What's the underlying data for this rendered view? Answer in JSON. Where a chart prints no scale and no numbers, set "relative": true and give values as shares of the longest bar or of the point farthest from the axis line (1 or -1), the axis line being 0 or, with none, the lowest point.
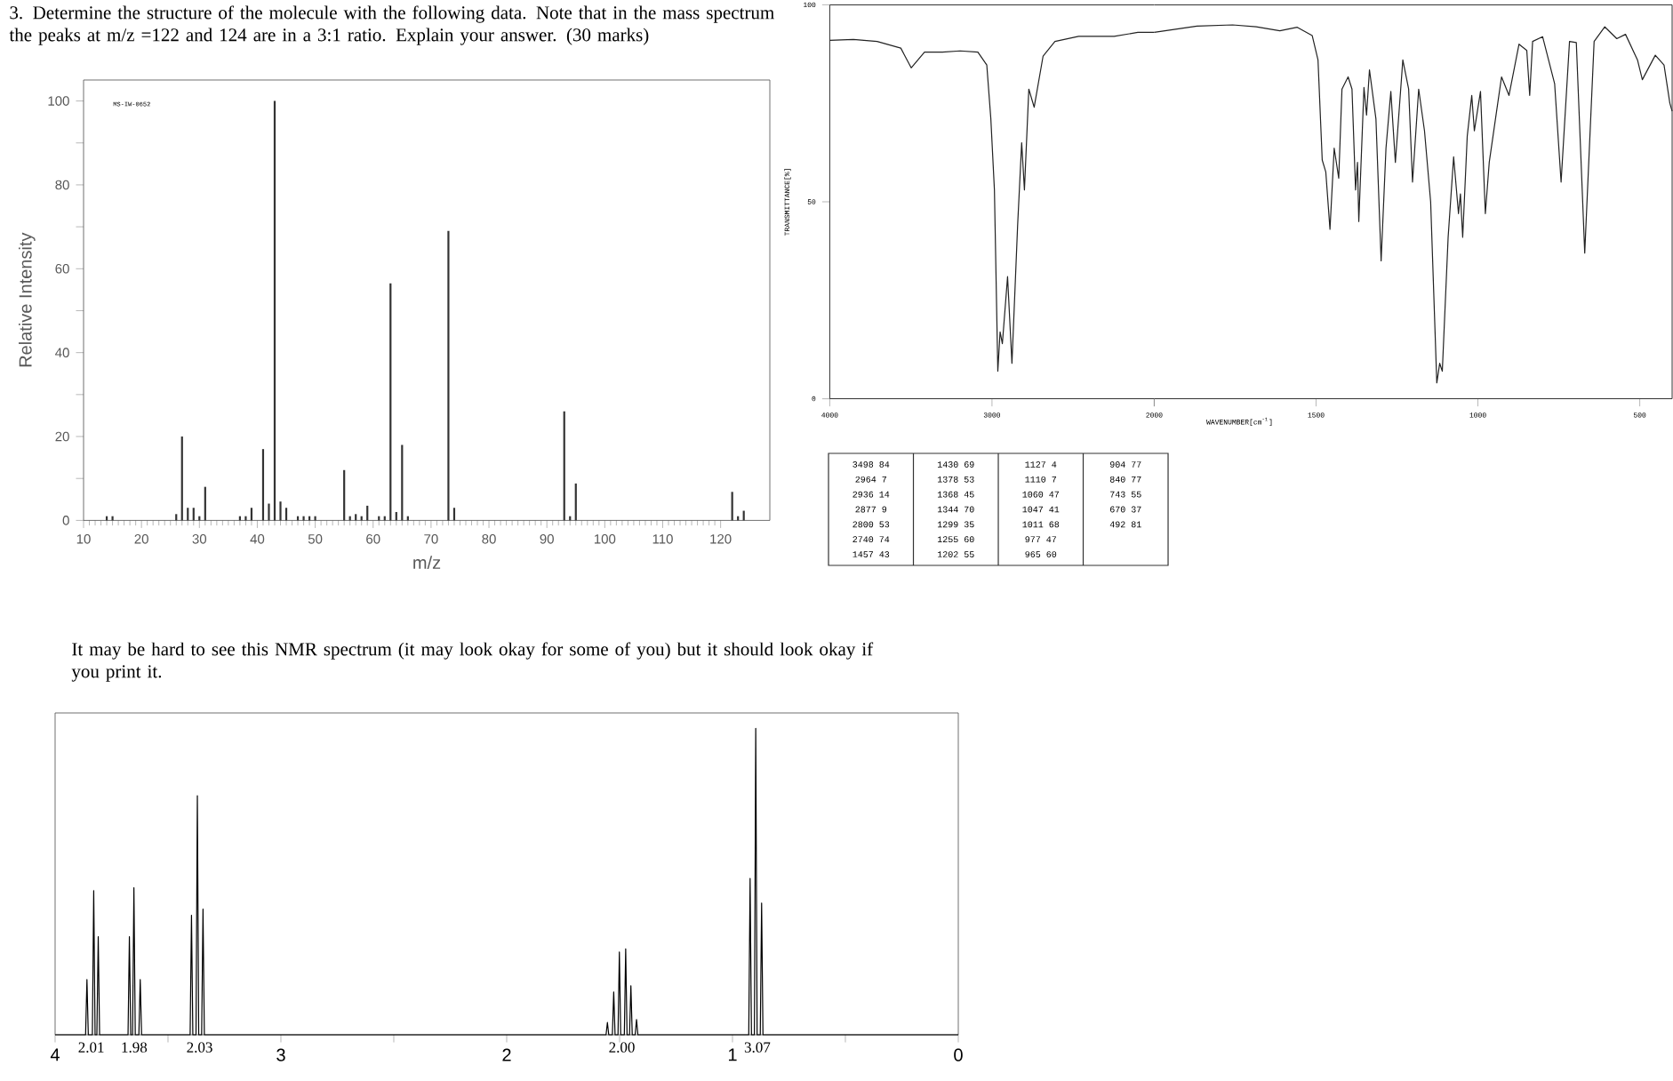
{
  "chart_data": [
    {
      "type": "bar",
      "title": "3. Determine the structure of the molecule with the following data. Note that in the mass spectrum the peaks at m/z =122 and 124 are in a 3:1 ratio.  Explain your answer. (30 marks)",
      "annotations": [
        "MS-IW-0652"
      ],
      "xlabel": "m/z",
      "ylabel": "Relative Intensity",
      "color": "#333333",
      "x": [
        14,
        15,
        26,
        27,
        28,
        29,
        30,
        31,
        37,
        38,
        39,
        41,
        42,
        43,
        44,
        45,
        47,
        48,
        49,
        50,
        55,
        56,
        57,
        58,
        59,
        61,
        62,
        63,
        64,
        65,
        66,
        73,
        74,
        93,
        94,
        95,
        122,
        123,
        124
      ],
      "values": [
        1,
        1,
        1.5,
        20,
        3,
        3,
        1,
        8,
        1,
        1,
        3,
        17,
        4,
        100,
        4.5,
        3,
        1,
        1,
        1,
        1,
        12,
        1,
        1.5,
        1,
        3.5,
        1,
        1,
        56.5,
        2,
        18,
        1,
        69,
        3,
        26,
        1,
        8.8,
        6.8,
        1,
        2.3
      ],
      "xlim": [
        10,
        128.5
      ],
      "xticks": [
        10,
        20,
        30,
        40,
        50,
        60,
        70,
        80,
        90,
        100,
        110,
        120
      ],
      "ylim": [
        0,
        105
      ],
      "yticks": [
        0,
        {
          "value": 10,
          "label": null
        },
        20,
        {
          "value": 30,
          "label": null
        },
        40,
        {
          "value": 50,
          "label": null
        },
        60,
        {
          "value": 70,
          "label": null
        },
        80,
        {
          "value": 90,
          "label": null
        },
        100
      ]
    },
    {
      "type": "line",
      "ylabel": "TRANSMITTANCE[%]",
      "color": "#222222",
      "annotations": [
        "3498 84",
        "2964 7",
        "2936 14",
        "2877 9",
        "2800 53",
        "2740 74",
        "1457 43",
        "1430 69",
        "1378 53",
        "1368 45",
        "1344 70",
        "1299 35",
        "1255 60",
        "1202 55",
        "1127 4",
        "1110 7",
        "1060 47",
        "1047 41",
        "1011 68",
        "977 47",
        "965 60",
        "904 77",
        "840 77",
        "743 55",
        "670 37",
        "492 81"
      ],
      "x": [
        4000,
        3854,
        3708,
        3562,
        3498,
        3416,
        3306,
        3196,
        3087,
        3032,
        3007,
        2985,
        2964,
        2950,
        2936,
        2904,
        2877,
        2842,
        2817,
        2800,
        2773,
        2740,
        2685,
        2612,
        2466,
        2247,
        2101,
        2000
      ],
      "values": [
        91,
        91.2,
        90.7,
        89,
        84,
        88,
        88,
        88.3,
        88,
        84.7,
        71,
        53,
        7,
        17,
        14,
        31,
        9,
        44,
        65,
        53,
        78.6,
        74,
        87,
        90.7,
        92,
        92,
        93,
        93
      ],
      "xlim": [
        4000,
        2000
      ],
      "xticks": [
        4000,
        3000,
        {
          "value": 2000,
          "label": null
        }
      ],
      "ylim": [
        0,
        100
      ],
      "yticks": [
        0,
        50,
        100
      ]
    },
    {
      "type": "line",
      "xlabel": "WAVENUMBER[cm$^{-1}$]",
      "color": "#222222",
      "tick_labels": "x",
      "x": [
        2000,
        1868,
        1758,
        1685,
        1612,
        1558,
        1512,
        1494,
        1481,
        1470,
        1457,
        1444,
        1430,
        1420,
        1401,
        1389,
        1378,
        1372,
        1368,
        1352,
        1344,
        1335,
        1315,
        1299,
        1284,
        1269,
        1255,
        1232,
        1214,
        1202,
        1183,
        1165,
        1146,
        1127,
        1118,
        1110,
        1092,
        1075,
        1060,
        1054,
        1047,
        1033,
        1019,
        1011,
        992,
        977,
        965,
        943,
        927,
        904,
        873,
        849,
        840,
        831,
        800,
        763,
        743,
        717,
        696,
        670,
        641,
        608,
        571,
        544,
        507,
        492,
        452,
        425,
        407,
        400
      ],
      "values": [
        93,
        94.6,
        94.9,
        94.4,
        93.4,
        94.3,
        92.2,
        86,
        60.6,
        57.6,
        43,
        63.6,
        56,
        78.6,
        81.7,
        78.6,
        53,
        60,
        45,
        79,
        72,
        83.5,
        71,
        35,
        63.6,
        78,
        60,
        86,
        78.6,
        55,
        78.6,
        68,
        50,
        4,
        9,
        7,
        41,
        61.4,
        47,
        52,
        41,
        66.6,
        77,
        68,
        78,
        47,
        60,
        72.6,
        81.7,
        77,
        90,
        88.4,
        77,
        90.7,
        91.9,
        80,
        55,
        90.7,
        90.4,
        37,
        90.7,
        94.4,
        91.4,
        92.5,
        86,
        81,
        87.2,
        84.7,
        75,
        73
      ],
      "xlim": [
        2000,
        400
      ],
      "xticks": [
        2000,
        1500,
        1000,
        500
      ],
      "ylim": [
        0,
        100
      ],
      "yticks": [
        0,
        50,
        100
      ]
    },
    {
      "type": "line",
      "relative": true,
      "title": "It may be hard to see this NMR spectrum (it may look okay for some of you) but it should look okay if you print it.",
      "color": "#000000",
      "x": [
        4,
        3.865,
        3.859,
        3.853,
        3.835,
        3.829,
        3.823,
        3.815,
        3.809,
        3.803,
        3.677,
        3.671,
        3.665,
        3.657,
        3.651,
        3.645,
        3.629,
        3.623,
        3.617,
        3.402,
        3.396,
        3.39,
        3.376,
        3.37,
        3.364,
        3.351,
        3.345,
        3.339,
        1.56,
        1.554,
        1.548,
        1.532,
        1.526,
        1.52,
        1.507,
        1.501,
        1.495,
        1.479,
        1.473,
        1.467,
        1.456,
        1.45,
        1.444,
        1.431,
        1.425,
        1.419,
        0.928,
        0.922,
        0.916,
        0.903,
        0.897,
        0.891,
        0.877,
        0.871,
        0.865,
        0
      ],
      "values": [
        0,
        0,
        0.18,
        0,
        0,
        0.47,
        0,
        0,
        0.32,
        0,
        0,
        0.32,
        0,
        0,
        0.48,
        0,
        0,
        0.18,
        0,
        0,
        0.39,
        0,
        0,
        0.78,
        0,
        0,
        0.41,
        0,
        0,
        0.04,
        0,
        0,
        0.14,
        0,
        0,
        0.27,
        0,
        0,
        0.28,
        0,
        0,
        0.16,
        0,
        0,
        0.05,
        0,
        0,
        0.51,
        0,
        0,
        1,
        0,
        0,
        0.43,
        0,
        0
      ],
      "xlim": [
        4,
        0
      ],
      "xticks": [
        4,
        {
          "value": 3.5,
          "label": null
        },
        3,
        {
          "value": 2.5,
          "label": null
        },
        2,
        {
          "value": 1.5,
          "label": null
        },
        1,
        {
          "value": 0.5,
          "label": null
        },
        0
      ],
      "annotations": [
        {
          "text": "2.01",
          "x": 3.84,
          "y": 0
        },
        {
          "text": "1.98",
          "x": 3.65,
          "y": 0
        },
        {
          "text": "2.03",
          "x": 3.36,
          "y": 0
        },
        {
          "text": "2.00",
          "x": 1.49,
          "y": 0
        },
        {
          "text": "3.07",
          "x": 0.89,
          "y": 0
        }
      ]
    }
  ]
}
